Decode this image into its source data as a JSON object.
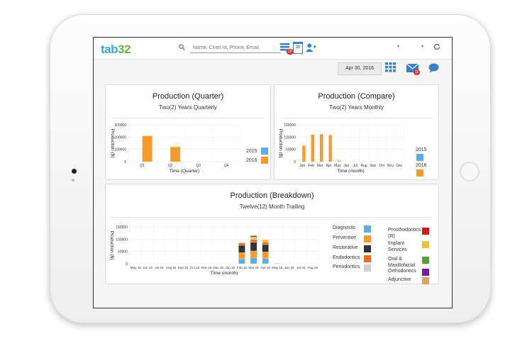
{
  "app": {
    "logo_text": "tab",
    "logo_num": "32"
  },
  "colors": {
    "c2015": "#5dade2",
    "c2016": "#f59a2b",
    "diagnostic": "#5dade2",
    "preventive": "#f59a2b",
    "restorative": "#333333",
    "endodontics": "#f26c22",
    "periodontics": "#cfcfcf",
    "prosthodontics": "#d41b1b",
    "implant": "#f0c23c",
    "oral": "#5a9e3b",
    "ortho": "#7a1aa0",
    "adjunctive": "#dba065"
  },
  "topbar": {
    "search_placeholder": "Name, Chart Id, Phone, Email",
    "tasks_badge": "18",
    "calendar_day": "30",
    "messages_badge": "11",
    "icons": [
      "search-icon",
      "tasks-icon",
      "calendar-icon",
      "add-user-icon",
      "refresh-icon"
    ]
  },
  "toolbar": {
    "date": "Apr 30, 2016",
    "icons": [
      "grid-icon",
      "mail-icon",
      "chat-icon"
    ]
  },
  "quarter": {
    "title": "Production (Quarter)",
    "subtitle": "Two(2) Years Quarterly"
  },
  "compare": {
    "title": "Production (Compare)",
    "subtitle": "Two(2) Years Monthly"
  },
  "breakdown": {
    "title": "Production (Breakdown)",
    "subtitle": "Twelve(12) Month Trailing"
  },
  "legend": {
    "s2015": "2015",
    "s2016": "2016"
  },
  "breakdown_legend": {
    "left": [
      "Diagnostic",
      "Preventive",
      "Restorative",
      "Endodontics",
      "Periodontics"
    ],
    "right": [
      "Prosthodontics (R)",
      "Implant Services",
      "Oral & Maxillofacial",
      "Orthodontics",
      "Adjunctive"
    ]
  },
  "chart_data": [
    {
      "type": "bar",
      "title": "Production (Quarter)",
      "subtitle": "Two(2) Years Quarterly",
      "xlabel": "Time (Quarter)",
      "ylabel": "Production ($)",
      "categories": [
        "Q1",
        "Q2",
        "Q3",
        "Q4"
      ],
      "yticks": [
        "300000",
        "200000",
        "100000",
        "0"
      ],
      "ylim": [
        0,
        300000
      ],
      "series": [
        {
          "name": "2015",
          "values": [
            0,
            0,
            0,
            0
          ]
        },
        {
          "name": "2016",
          "values": [
            210000,
            120000,
            0,
            0
          ]
        }
      ],
      "legend": "right"
    },
    {
      "type": "bar",
      "title": "Production (Compare)",
      "subtitle": "Two(2) Years Monthly",
      "xlabel": "Time (month)",
      "ylabel": "Production ($)",
      "categories": [
        "Jan",
        "Feb",
        "Mar",
        "Apr",
        "May",
        "Jun",
        "Jul",
        "Aug",
        "Sep",
        "Oct",
        "Nov",
        "Dec"
      ],
      "yticks": [
        "150000",
        "100000",
        "50000",
        "0"
      ],
      "ylim": [
        0,
        150000
      ],
      "series": [
        {
          "name": "2015",
          "values": [
            0,
            0,
            0,
            0,
            0,
            0,
            0,
            0,
            0,
            0,
            0,
            0
          ]
        },
        {
          "name": "2016",
          "values": [
            65000,
            110000,
            112000,
            108000,
            4000,
            0,
            0,
            0,
            0,
            0,
            0,
            0
          ]
        }
      ],
      "legend": "right"
    },
    {
      "type": "bar",
      "stacked": true,
      "title": "Production (Breakdown)",
      "subtitle": "Twelve(12) Month Trailing",
      "xlabel": "Time (month)",
      "ylabel": "Production ($)",
      "categories": [
        "May 15",
        "Jun 15",
        "Jul 15",
        "Aug 15",
        "Sep 15",
        "Oct 15",
        "Nov 15",
        "Dec 15",
        "Jan 16",
        "Feb 16",
        "Mar 16",
        "Apr 16",
        "May 16",
        "Jun 16",
        "Jul 16",
        "Aug 16"
      ],
      "yticks": [
        "150000",
        "100000",
        "50000",
        "0"
      ],
      "ylim": [
        0,
        150000
      ],
      "series": [
        {
          "name": "Diagnostic",
          "values": [
            0,
            0,
            0,
            0,
            0,
            0,
            0,
            0,
            0,
            20000,
            24000,
            22000,
            0,
            0,
            0,
            0
          ]
        },
        {
          "name": "Preventive",
          "values": [
            0,
            0,
            0,
            0,
            0,
            0,
            0,
            0,
            0,
            25000,
            28000,
            26000,
            2000,
            0,
            0,
            0
          ]
        },
        {
          "name": "Restorative",
          "values": [
            0,
            0,
            0,
            0,
            0,
            0,
            0,
            0,
            0,
            30000,
            35000,
            30000,
            0,
            0,
            0,
            0
          ]
        },
        {
          "name": "Endodontics",
          "values": [
            0,
            0,
            0,
            0,
            0,
            0,
            0,
            0,
            0,
            10000,
            12000,
            10000,
            0,
            0,
            0,
            0
          ]
        },
        {
          "name": "Periodontics",
          "values": [
            0,
            0,
            0,
            0,
            0,
            0,
            0,
            0,
            0,
            0,
            0,
            0,
            0,
            0,
            0,
            0
          ]
        },
        {
          "name": "Prosthodontics (R)",
          "values": [
            0,
            0,
            0,
            0,
            0,
            0,
            0,
            0,
            0,
            0,
            0,
            0,
            0,
            0,
            0,
            0
          ]
        },
        {
          "name": "Implant Services",
          "values": [
            0,
            0,
            0,
            0,
            0,
            0,
            0,
            0,
            0,
            0,
            10000,
            10000,
            0,
            0,
            0,
            0
          ]
        },
        {
          "name": "Oral & Maxillofacial",
          "values": [
            0,
            0,
            0,
            0,
            0,
            0,
            0,
            0,
            0,
            0,
            0,
            0,
            0,
            0,
            0,
            0
          ]
        },
        {
          "name": "Orthodontics",
          "values": [
            0,
            0,
            0,
            0,
            0,
            0,
            0,
            0,
            0,
            0,
            5000,
            0,
            0,
            0,
            0,
            0
          ]
        },
        {
          "name": "Adjunctive",
          "values": [
            0,
            0,
            0,
            0,
            0,
            0,
            0,
            0,
            0,
            0,
            0,
            0,
            0,
            0,
            0,
            0
          ]
        }
      ],
      "legend": "right"
    }
  ]
}
